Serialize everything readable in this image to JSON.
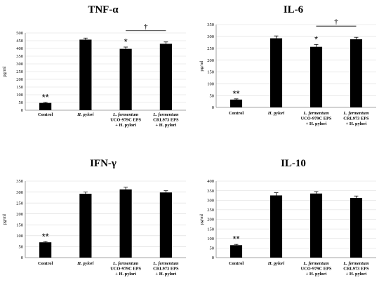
{
  "chart_data": [
    {
      "type": "bar",
      "title": "TNF-α",
      "ylabel": "pg/ml",
      "ylim": [
        0,
        500
      ],
      "yticks": [
        "0",
        "50",
        "100",
        "150",
        "200",
        "250",
        "300",
        "350",
        "400",
        "450",
        "500"
      ],
      "categories": [
        [
          "Control"
        ],
        [
          "H. pylori"
        ],
        [
          "L. fermentum",
          "UCO-979C EPS",
          "+ H. pylori"
        ],
        [
          "L. fermentum",
          "CRL973 EPS",
          "+ H. pylori"
        ]
      ],
      "values": [
        47,
        457,
        397,
        430
      ],
      "errors": [
        4,
        10,
        12,
        12
      ],
      "annotations": [
        "**",
        "",
        "*",
        ""
      ],
      "bracket": {
        "from": 2,
        "to": 3,
        "label": "†"
      }
    },
    {
      "type": "bar",
      "title": "IL-6",
      "ylabel": "pg/ml",
      "ylim": [
        0,
        350
      ],
      "yticks": [
        "0",
        "50",
        "100",
        "150",
        "200",
        "250",
        "300",
        "350"
      ],
      "categories": [
        [
          "Control"
        ],
        [
          "H. pylori"
        ],
        [
          "L. fermentum",
          "UCO-979C EPS",
          "+ H. pylori"
        ],
        [
          "L. fermentum",
          "CRL973 EPS",
          "+ H. pylori"
        ]
      ],
      "values": [
        33,
        292,
        256,
        288
      ],
      "errors": [
        3,
        10,
        10,
        8
      ],
      "annotations": [
        "**",
        "",
        "*",
        ""
      ],
      "bracket": {
        "from": 2,
        "to": 3,
        "label": "†"
      }
    },
    {
      "type": "bar",
      "title": "IFN-γ",
      "ylabel": "pg/ml",
      "ylim": [
        0,
        350
      ],
      "yticks": [
        "0",
        "50",
        "100",
        "150",
        "200",
        "250",
        "300",
        "350"
      ],
      "categories": [
        [
          "Control"
        ],
        [
          "H. pylori"
        ],
        [
          "L. fermentum",
          "UCO-979C EPS",
          "+ H. pylori"
        ],
        [
          "L. fermentum",
          "CRL973 EPS",
          "+ H. pylori"
        ]
      ],
      "values": [
        70,
        292,
        312,
        298
      ],
      "errors": [
        3,
        8,
        10,
        8
      ],
      "annotations": [
        "**",
        "",
        "",
        ""
      ],
      "bracket": null
    },
    {
      "type": "bar",
      "title": "IL-10",
      "ylabel": "pg/ml",
      "ylim": [
        0,
        400
      ],
      "yticks": [
        "0",
        "50",
        "100",
        "150",
        "200",
        "250",
        "300",
        "350",
        "400"
      ],
      "categories": [
        [
          "Control"
        ],
        [
          "H. pylori"
        ],
        [
          "L. fermentum",
          "UCO-979C EPS",
          "+ H. pylori"
        ],
        [
          "L. fermentum",
          "CRL973 EPS",
          "+ H. pylori"
        ]
      ],
      "values": [
        65,
        325,
        335,
        312
      ],
      "errors": [
        4,
        14,
        10,
        10
      ],
      "annotations": [
        "**",
        "",
        "",
        ""
      ],
      "bracket": null
    }
  ]
}
